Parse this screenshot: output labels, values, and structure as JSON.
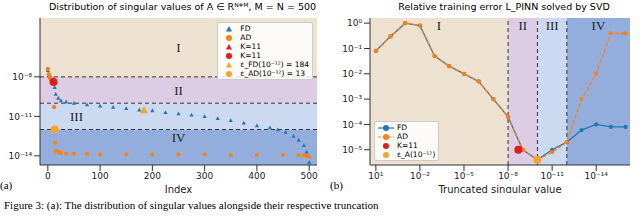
{
  "chart_data": [
    {
      "type": "scatter",
      "panel_label": "(a)",
      "title": "Distribution of singular values of A ∈ Rᴺ*ᴹ, M = N = 500",
      "x_label": "Index",
      "log": "y",
      "legend": "upper right",
      "xlim": [
        -15,
        515
      ],
      "xticks": [
        0,
        100,
        200,
        300,
        400,
        500
      ],
      "ylim": [
        2e-15,
        0.0003
      ],
      "yticks": [
        {
          "value": 1e-08,
          "label": "10⁻⁸"
        },
        {
          "value": 1e-11,
          "label": "10⁻¹¹"
        },
        {
          "value": 1e-14,
          "label": "10⁻¹⁴"
        }
      ],
      "regions": [
        {
          "label": "I",
          "y": [
            1e-08,
            0.0003
          ],
          "color": "#ece2cf"
        },
        {
          "label": "II",
          "y": [
            1e-10,
            1e-08
          ],
          "color": "#ddcde4"
        },
        {
          "label": "III",
          "y": [
            1e-12,
            1e-10
          ],
          "color": "#cbdaf0"
        },
        {
          "label": "IV",
          "y": [
            2e-15,
            1e-12
          ],
          "color": "#93aedd"
        }
      ],
      "series": [
        {
          "name": "FD",
          "color": "#1f77b4",
          "marker": "triangle",
          "x": [
            0,
            2,
            4,
            6,
            8,
            11,
            13,
            15,
            20,
            25,
            35,
            50,
            75,
            100,
            125,
            150,
            175,
            200,
            225,
            250,
            275,
            300,
            325,
            350,
            375,
            400,
            425,
            440,
            455,
            470,
            480,
            490,
            495,
            500
          ],
          "values": [
            3.2e-08,
            1.3e-08,
            8.9e-09,
            7.1e-09,
            6.3e-09,
            5e-09,
            1.6e-09,
            5e-10,
            2.5e-10,
            1.6e-10,
            1.3e-10,
            1e-10,
            7.9e-11,
            6.3e-11,
            5e-11,
            4e-11,
            3.2e-11,
            2.8e-11,
            2e-11,
            1.6e-11,
            1.3e-11,
            1e-11,
            7.1e-12,
            5e-12,
            3.2e-12,
            2e-12,
            1.4e-12,
            1e-12,
            6.3e-13,
            3.2e-13,
            1.6e-13,
            6.3e-14,
            2e-14,
            3.2e-15
          ]
        },
        {
          "name": "AD",
          "color": "#ff7f0e",
          "marker": "circle",
          "x": [
            0,
            2,
            4,
            6,
            8,
            11,
            12,
            13,
            14,
            15,
            20,
            25,
            35,
            50,
            75,
            100,
            150,
            200,
            250,
            300,
            350,
            400,
            450,
            480,
            490,
            495,
            500
          ],
          "values": [
            4e-08,
            1.6e-08,
            1e-08,
            7e-09,
            5.6e-09,
            4e-09,
            5e-11,
            1e-12,
            1e-13,
            2.5e-14,
            2e-14,
            1.6e-14,
            1.5e-14,
            1.4e-14,
            1.4e-14,
            1.3e-14,
            1.3e-14,
            1.3e-14,
            1.3e-14,
            1.3e-14,
            1.2e-14,
            1.2e-14,
            1.2e-14,
            1.1e-14,
            1.1e-14,
            1e-14,
            8e-15
          ]
        },
        {
          "name": "K=11",
          "color": "#e41a1c",
          "marker": "triangle",
          "x": [
            11
          ],
          "values": [
            5e-09
          ]
        },
        {
          "name": "K=11",
          "color": "#e41a1c",
          "marker": "circle",
          "x": [
            11
          ],
          "values": [
            4e-09
          ]
        },
        {
          "name": "ε_FD(10⁻¹²) = 184",
          "color": "#f5a623",
          "marker": "triangle",
          "x": [
            184
          ],
          "values": [
            3e-11
          ]
        },
        {
          "name": "ε_AD(10⁻¹²) = 13",
          "color": "#f5a623",
          "marker": "circle",
          "x": [
            13
          ],
          "values": [
            1e-12
          ]
        }
      ]
    },
    {
      "type": "line",
      "panel_label": "(b)",
      "title": "Relative training error L_PINN solved by SVD",
      "x_label": "Truncated singular value",
      "log": true,
      "legend": "lower left",
      "xlim": [
        25,
        5e-17
      ],
      "xticks": [
        {
          "value": 10,
          "label": "10¹"
        },
        {
          "value": 0.01,
          "label": "10⁻²"
        },
        {
          "value": 1e-05,
          "label": "10⁻⁵"
        },
        {
          "value": 1e-08,
          "label": "10⁻⁸"
        },
        {
          "value": 1e-11,
          "label": "10⁻¹¹"
        },
        {
          "value": 1e-14,
          "label": "10⁻¹⁴"
        }
      ],
      "ylim": [
        2.5e-06,
        1.6
      ],
      "yticks": [
        {
          "value": 1,
          "label": "10⁰"
        },
        {
          "value": 0.1,
          "label": "10⁻¹"
        },
        {
          "value": 0.01,
          "label": "10⁻²"
        },
        {
          "value": 0.001,
          "label": "10⁻³"
        },
        {
          "value": 0.0001,
          "label": "10⁻⁴"
        },
        {
          "value": 1e-05,
          "label": "10⁻⁵"
        }
      ],
      "regions": [
        {
          "label": "I",
          "x": [
            25,
            1e-08
          ],
          "color": "#ece2cf"
        },
        {
          "label": "II",
          "x": [
            1e-08,
            1e-10
          ],
          "color": "#ddcde4"
        },
        {
          "label": "III",
          "x": [
            1e-10,
            1e-12
          ],
          "color": "#cbdaf0"
        },
        {
          "label": "IV",
          "x": [
            1e-12,
            5e-17
          ],
          "color": "#93aedd"
        }
      ],
      "series": [
        {
          "name": "FD",
          "color": "#1f77b4",
          "marker": "circle",
          "line_style": "solid",
          "x": [
            10,
            1,
            0.1,
            0.01,
            0.001,
            0.0001,
            1e-05,
            1e-06,
            1e-07,
            1e-08,
            1e-09,
            1e-10,
            1e-11,
            1e-12,
            1e-13,
            1e-14,
            1e-15,
            1e-16
          ],
          "values": [
            0.08,
            0.3,
            1,
            0.8,
            0.05,
            0.02,
            0.01,
            0.005,
            0.001,
            0.0002,
            1e-05,
            4e-06,
            1e-05,
            2e-05,
            6e-05,
            0.0001,
            8e-05,
            8e-05
          ]
        },
        {
          "name": "AD",
          "color": "#ff7f0e",
          "marker": "circle",
          "line_style": "dashed",
          "x": [
            10,
            1,
            0.1,
            0.01,
            0.001,
            0.0001,
            1e-05,
            1e-06,
            1e-07,
            1e-08,
            1e-09,
            1e-10,
            1e-11,
            1e-12,
            1e-13,
            1e-14,
            1e-15,
            1e-16
          ],
          "values": [
            0.08,
            0.3,
            1,
            0.8,
            0.05,
            0.02,
            0.01,
            0.005,
            0.001,
            0.0002,
            1e-05,
            4e-06,
            8e-06,
            2e-05,
            0.001,
            0.01,
            0.4,
            0.4
          ]
        },
        {
          "name": "K=11",
          "color": "#e41a1c",
          "marker": "circle",
          "x": [
            2e-09
          ],
          "values": [
            1e-05
          ]
        },
        {
          "name": "ε_A(10⁻¹²)",
          "color": "#f5a623",
          "marker": "circle",
          "x": [
            1e-10
          ],
          "values": [
            4e-06
          ]
        }
      ]
    }
  ],
  "caption": "Figure 3: (a): The distribution of singular values alongside their respective truncation"
}
